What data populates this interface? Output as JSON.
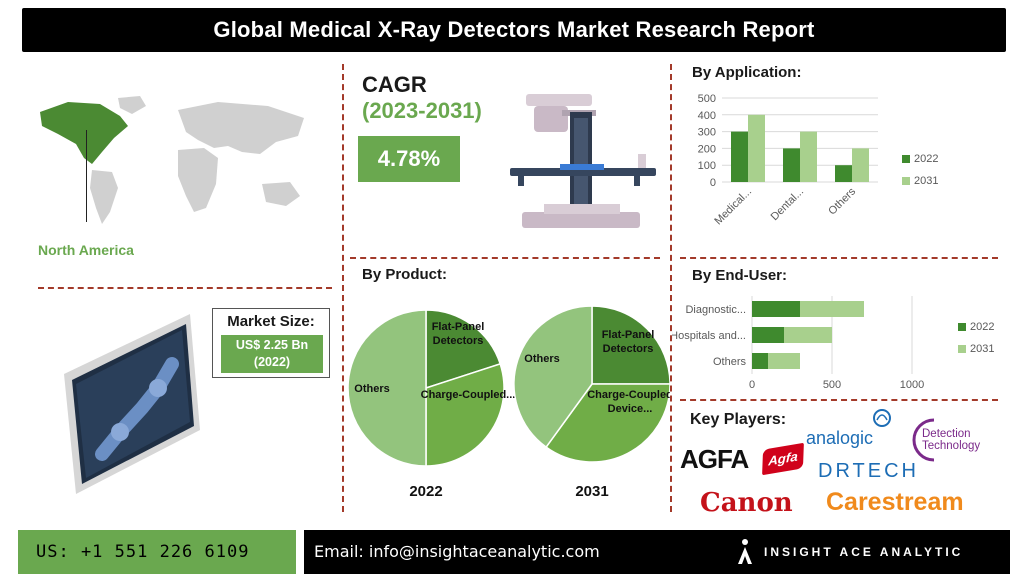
{
  "header": {
    "title": "Global Medical X-Ray Detectors Market Research Report"
  },
  "region": {
    "label": "North America"
  },
  "cagr": {
    "title": "CAGR",
    "period": "(2023-2031)",
    "value": "4.78%"
  },
  "market_size": {
    "label": "Market Size:",
    "value": "US$ 2.25 Bn",
    "year": "(2022)"
  },
  "colors": {
    "accent_green": "#6aa84f",
    "series_2022": "#3f8a2e",
    "series_2031": "#a8d08d",
    "pie_dark": "#4b8a33",
    "pie_mid": "#70ad47",
    "pie_light": "#93c47d",
    "divider": "#a33a2a"
  },
  "key_players": {
    "title": "Key Players:",
    "logos": [
      "AGFA",
      "Agfa",
      "analogic",
      "Detection",
      "Technology",
      "DRTECH",
      "Canon",
      "Carestream"
    ]
  },
  "footer": {
    "phone": "US: +1 551 226 6109",
    "email": "Email: info@insightaceanalytic.com",
    "brand": "INSIGHT ACE ANALYTIC"
  },
  "chart_data": [
    {
      "type": "bar",
      "title": "By Application:",
      "orientation": "vertical",
      "categories": [
        "Medical...",
        "Dental...",
        "Others"
      ],
      "series": [
        {
          "name": "2022",
          "values": [
            300,
            200,
            100
          ]
        },
        {
          "name": "2031",
          "values": [
            400,
            300,
            200
          ]
        }
      ],
      "ylim": [
        0,
        500
      ],
      "yticks": [
        0,
        100,
        200,
        300,
        400,
        500
      ],
      "grid": true,
      "legend": "right"
    },
    {
      "type": "bar",
      "title": "By End-User:",
      "orientation": "horizontal",
      "stacked": true,
      "categories": [
        "Diagnostic...",
        "Hospitals and...",
        "Others"
      ],
      "series": [
        {
          "name": "2022",
          "values": [
            300,
            200,
            100
          ]
        },
        {
          "name": "2031",
          "values": [
            400,
            300,
            200
          ]
        }
      ],
      "xlim": [
        0,
        1000
      ],
      "xticks": [
        0,
        500,
        1000
      ],
      "grid": true,
      "legend": "right"
    },
    {
      "type": "pie",
      "title": "By Product:",
      "subtitle": "2022",
      "slices": [
        {
          "label": "Flat-Panel Detectors",
          "value": 20
        },
        {
          "label": "Charge-Coupled...",
          "value": 30
        },
        {
          "label": "Others",
          "value": 50
        }
      ]
    },
    {
      "type": "pie",
      "subtitle": "2031",
      "slices": [
        {
          "label": "Flat-Panel Detectors",
          "value": 25
        },
        {
          "label": "Charge-Coupled Device...",
          "value": 35
        },
        {
          "label": "Others",
          "value": 40
        }
      ]
    }
  ]
}
